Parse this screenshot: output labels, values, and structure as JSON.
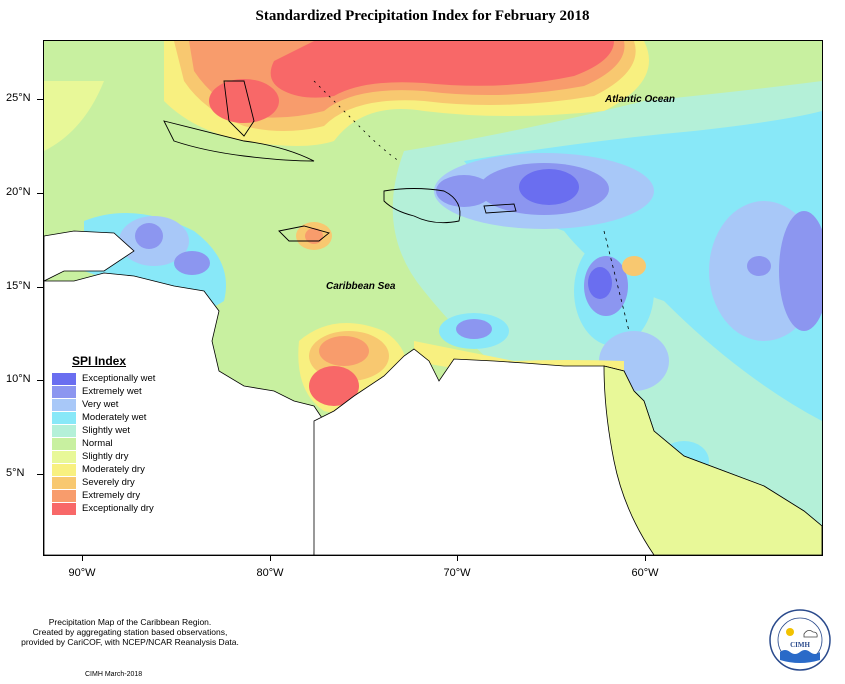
{
  "title": "Standardized Precipitation Index for February 2018",
  "map": {
    "lat_labels": [
      "25°N",
      "20°N",
      "15°N",
      "10°N",
      "5°N"
    ],
    "lon_labels": [
      "90°W",
      "80°W",
      "70°W",
      "60°W"
    ],
    "ocean_labels": {
      "atlantic": "Atlantic Ocean",
      "caribbean": "Caribbean Sea"
    }
  },
  "legend": {
    "title": "SPI Index",
    "items": [
      {
        "label": "Exceptionally wet",
        "color": "#6a6ef0"
      },
      {
        "label": "Extremely wet",
        "color": "#8c96f0"
      },
      {
        "label": "Very wet",
        "color": "#a8c8f8"
      },
      {
        "label": "Moderately wet",
        "color": "#88e8f8"
      },
      {
        "label": "Slightly wet",
        "color": "#b4f0d8"
      },
      {
        "label": "Normal",
        "color": "#c8f0a0"
      },
      {
        "label": "Slightly dry",
        "color": "#e8f898"
      },
      {
        "label": "Moderately dry",
        "color": "#f8f080"
      },
      {
        "label": "Severely dry",
        "color": "#f8c870"
      },
      {
        "label": "Extremely dry",
        "color": "#f89c6c"
      },
      {
        "label": "Exceptionally dry",
        "color": "#f86868"
      }
    ]
  },
  "footer": {
    "line1": "Precipitation Map of the Caribbean Region.",
    "line2": "Created by aggregating station based observations,",
    "line3": "provided by CariCOF, with NCEP/NCAR Reanalysis Data.",
    "credit": "CIMH March-2018"
  },
  "logo": {
    "text": "CIMH"
  }
}
